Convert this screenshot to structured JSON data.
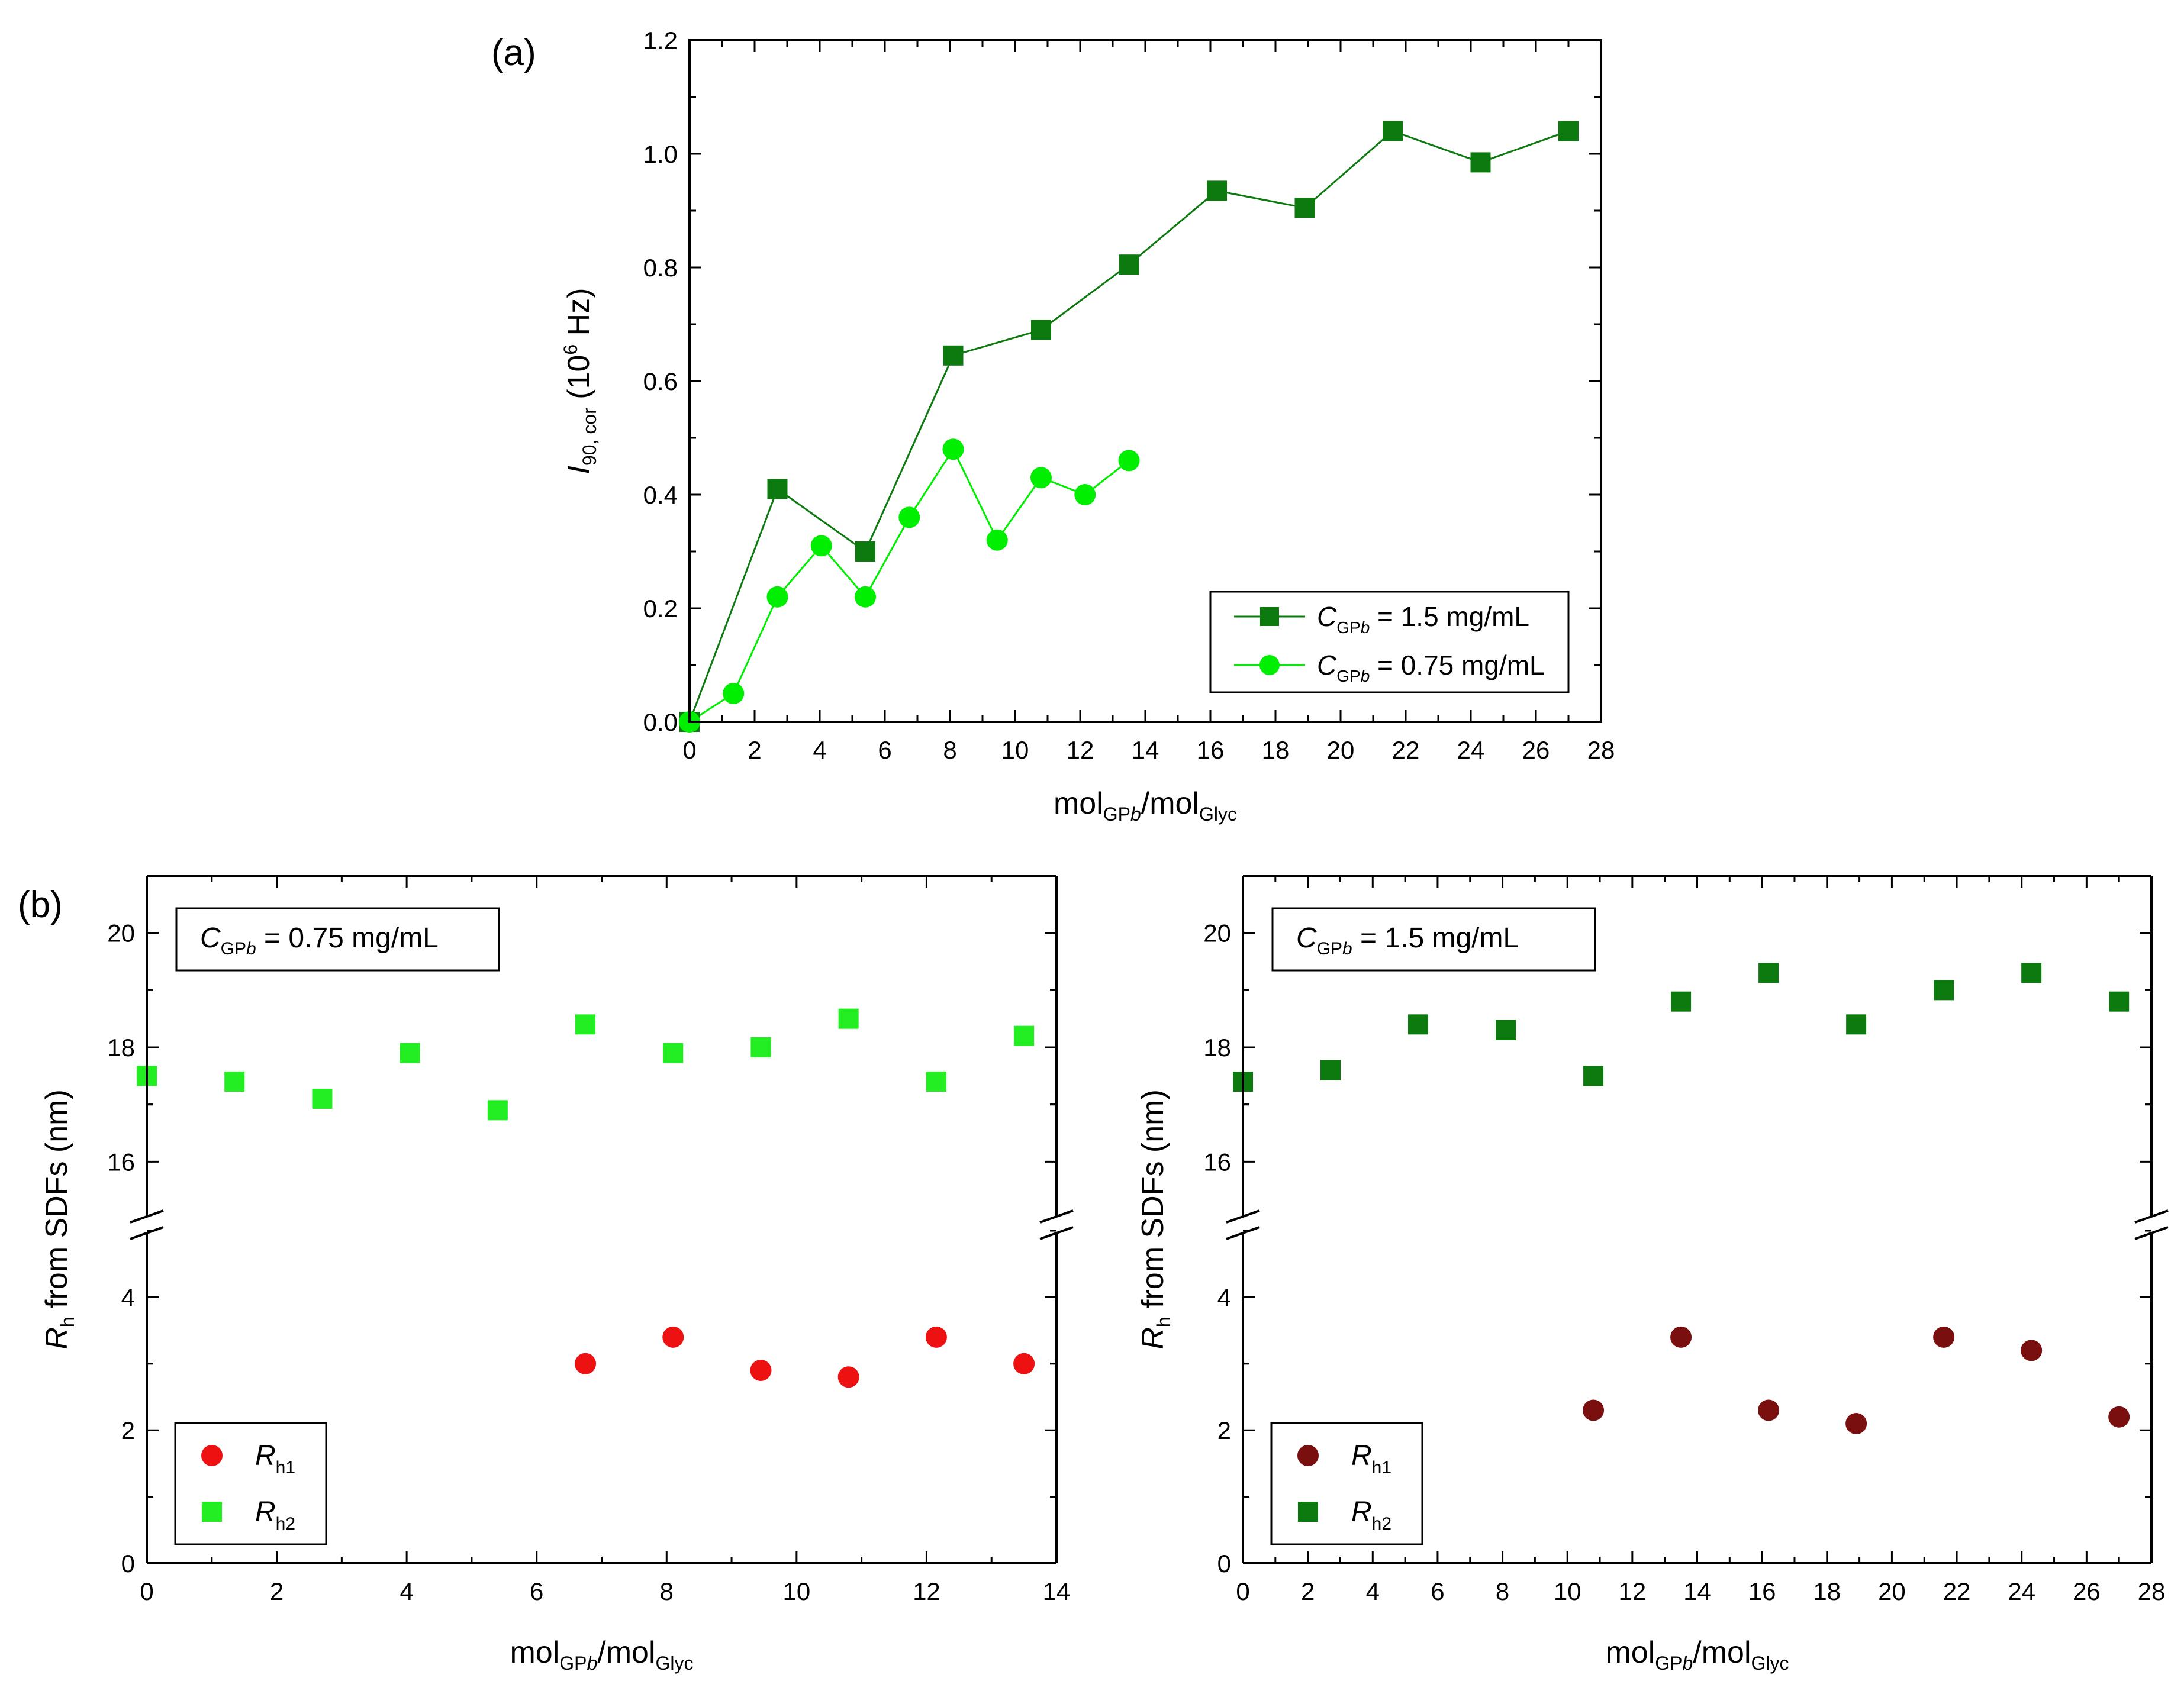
{
  "figure": {
    "panel_a_label": "(a)",
    "panel_b_label": "(b)"
  },
  "chart_data": [
    {
      "id": "a",
      "type": "line",
      "ylabel_main": "I",
      "ylabel_sub": "90, cor",
      "ylabel_units": "(10",
      "ylabel_sup": "6",
      "ylabel_units_end": " Hz)",
      "xlabel_parts": [
        "mol",
        "GP",
        "b",
        "/mol",
        "Glyc"
      ],
      "xlim": [
        0,
        28
      ],
      "ylim": [
        0.0,
        1.2
      ],
      "xticks": [
        0,
        2,
        4,
        6,
        8,
        10,
        12,
        14,
        16,
        18,
        20,
        22,
        24,
        26,
        28
      ],
      "yticks": [
        "0.0",
        "0.2",
        "0.4",
        "0.6",
        "0.8",
        "1.0",
        "1.2"
      ],
      "legend_position": "bottom-right",
      "series": [
        {
          "name_parts": [
            "C",
            "GP",
            "b",
            " = 1.5 mg/mL"
          ],
          "marker": "square",
          "color": "#0d7a10",
          "x": [
            0,
            2.7,
            5.4,
            8.1,
            10.8,
            13.5,
            16.2,
            18.9,
            21.6,
            24.3,
            27.0
          ],
          "y": [
            0.0,
            0.41,
            0.3,
            0.645,
            0.69,
            0.805,
            0.935,
            0.905,
            1.04,
            0.985,
            1.04
          ]
        },
        {
          "name_parts": [
            "C",
            "GP",
            "b",
            " = 0.75 mg/mL"
          ],
          "marker": "circle",
          "color": "#00ee00",
          "x": [
            0,
            1.35,
            2.7,
            4.05,
            5.4,
            6.75,
            8.1,
            9.45,
            10.8,
            12.15,
            13.5
          ],
          "y": [
            0.0,
            0.05,
            0.22,
            0.31,
            0.22,
            0.36,
            0.48,
            0.32,
            0.43,
            0.4,
            0.46
          ]
        }
      ]
    },
    {
      "id": "b-left",
      "type": "scatter",
      "annotation_parts": [
        "C",
        "GP",
        "b",
        " = 0.75 mg/mL"
      ],
      "ylabel_main": "R",
      "ylabel_sub": "h",
      "ylabel_rest": " from SDFs (nm)",
      "xlabel_parts": [
        "mol",
        "GP",
        "b",
        "/mol",
        "Glyc"
      ],
      "xlim": [
        0,
        14
      ],
      "ylim_lower": [
        0,
        5
      ],
      "ylim_upper": [
        15,
        21
      ],
      "axis_break": true,
      "xticks": [
        0,
        2,
        4,
        6,
        8,
        10,
        12,
        14
      ],
      "yticks_lower": [
        0,
        2,
        4
      ],
      "yticks_upper": [
        16,
        18,
        20
      ],
      "legend_position": "bottom-left",
      "series": [
        {
          "name_main": "R",
          "name_sub": "h1",
          "marker": "circle",
          "color": "#ee1111",
          "x": [
            6.75,
            8.1,
            9.45,
            10.8,
            12.15,
            13.5
          ],
          "y": [
            3.0,
            3.4,
            2.9,
            2.8,
            3.4,
            3.0
          ]
        },
        {
          "name_main": "R",
          "name_sub": "h2",
          "marker": "square",
          "color": "#22ee22",
          "x": [
            0,
            1.35,
            2.7,
            4.05,
            5.4,
            6.75,
            8.1,
            9.45,
            10.8,
            12.15,
            13.5
          ],
          "y": [
            17.5,
            17.4,
            17.1,
            17.9,
            16.9,
            18.4,
            17.9,
            18.0,
            18.5,
            17.4,
            18.2
          ]
        }
      ]
    },
    {
      "id": "b-right",
      "type": "scatter",
      "annotation_parts": [
        "C",
        "GP",
        "b",
        " = 1.5 mg/mL"
      ],
      "ylabel_main": "R",
      "ylabel_sub": "h",
      "ylabel_rest": " from SDFs (nm)",
      "xlabel_parts": [
        "mol",
        "GP",
        "b",
        "/mol",
        "Glyc"
      ],
      "xlim": [
        0,
        28
      ],
      "ylim_lower": [
        0,
        5
      ],
      "ylim_upper": [
        15,
        21
      ],
      "axis_break": true,
      "xticks": [
        0,
        2,
        4,
        6,
        8,
        10,
        12,
        14,
        16,
        18,
        20,
        22,
        24,
        26,
        28
      ],
      "yticks_lower": [
        0,
        2,
        4
      ],
      "yticks_upper": [
        16,
        18,
        20
      ],
      "legend_position": "bottom-left",
      "series": [
        {
          "name_main": "R",
          "name_sub": "h1",
          "marker": "circle",
          "color": "#7a0f0f",
          "x": [
            10.8,
            13.5,
            16.2,
            18.9,
            21.6,
            24.3,
            27.0
          ],
          "y": [
            2.3,
            3.4,
            2.3,
            2.1,
            3.4,
            3.2,
            2.2
          ]
        },
        {
          "name_main": "R",
          "name_sub": "h2",
          "marker": "square",
          "color": "#0d7a10",
          "x": [
            0,
            2.7,
            5.4,
            8.1,
            10.8,
            13.5,
            16.2,
            18.9,
            21.6,
            24.3,
            27.0
          ],
          "y": [
            17.4,
            17.6,
            18.4,
            18.3,
            17.5,
            18.8,
            19.3,
            18.4,
            19.0,
            19.3,
            18.8
          ]
        }
      ]
    }
  ]
}
